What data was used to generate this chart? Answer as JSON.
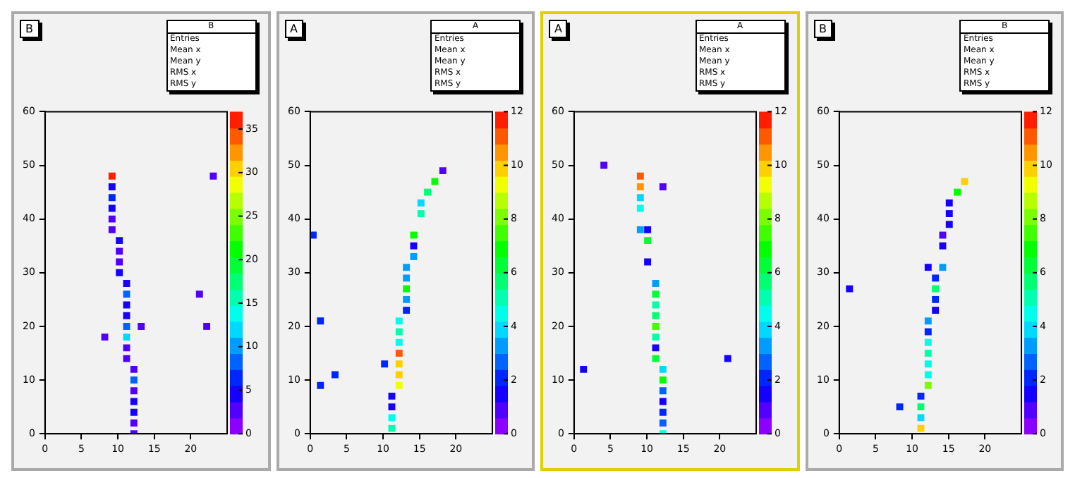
{
  "chart_data": [
    {
      "type": "scatter",
      "title": "B",
      "marker": "square",
      "xlim": [
        0,
        25
      ],
      "xticks": [
        0,
        5,
        10,
        15,
        20
      ],
      "ylim": [
        0,
        60
      ],
      "yticks": [
        0,
        10,
        20,
        30,
        40,
        50,
        60
      ],
      "clim": [
        0,
        37
      ],
      "cticks": [
        0,
        5,
        10,
        15,
        20,
        25,
        30,
        35
      ],
      "annotations": [
        "Entries",
        "Mean x",
        "Mean y",
        "RMS x",
        "RMS y"
      ],
      "x": [
        9.2,
        9.2,
        9.2,
        9.2,
        9.2,
        9.2,
        10.2,
        10.2,
        10.2,
        10.2,
        11.2,
        11.2,
        11.2,
        11.2,
        11.2,
        13.2,
        22.2,
        8.2,
        11.2,
        11.2,
        11.2,
        12.2,
        12.2,
        12.2,
        12.2,
        12.2,
        12.2,
        12.2,
        21.2,
        23.1
      ],
      "values": [
        48,
        46,
        44,
        42,
        40,
        38,
        36,
        34,
        32,
        30,
        28,
        26,
        24,
        22,
        20,
        20,
        20,
        18,
        18,
        16,
        14,
        12,
        10,
        8,
        6,
        4,
        2,
        0,
        26,
        48
      ],
      "cvalues": [
        36,
        5,
        6,
        5,
        2,
        2,
        4,
        2,
        2,
        4,
        5,
        9,
        4,
        4,
        9,
        2,
        2,
        2,
        12,
        3,
        3,
        2,
        8,
        2,
        5,
        5,
        2,
        2,
        2,
        3
      ]
    },
    {
      "type": "scatter",
      "title": "A",
      "marker": "square",
      "xlim": [
        0,
        25
      ],
      "xticks": [
        0,
        5,
        10,
        15,
        20
      ],
      "ylim": [
        0,
        60
      ],
      "yticks": [
        0,
        10,
        20,
        30,
        40,
        50,
        60
      ],
      "clim": [
        0,
        12
      ],
      "cticks": [
        0,
        2,
        4,
        6,
        8,
        10,
        12
      ],
      "annotations": [
        "Entries",
        "Mean x",
        "Mean y",
        "RMS x",
        "RMS y"
      ],
      "x": [
        18.2,
        17.1,
        16.1,
        15.2,
        15.2,
        14.2,
        14.2,
        14.2,
        13.2,
        13.2,
        13.2,
        13.2,
        13.2,
        12.2,
        12.2,
        12.2,
        12.2,
        12.2,
        12.2,
        12.2,
        11.2,
        11.2,
        11.2,
        11.2,
        10.2,
        0.4,
        1.4,
        3.4,
        1.4
      ],
      "values": [
        49,
        47,
        45,
        43,
        41,
        37,
        35,
        33,
        31,
        29,
        27,
        25,
        23,
        21,
        19,
        17,
        15,
        13,
        11,
        9,
        7,
        5,
        3,
        1,
        13,
        37,
        21,
        11,
        9
      ],
      "cvalues": [
        1,
        7,
        5.5,
        4,
        5,
        7,
        1.5,
        3,
        3.5,
        3,
        7,
        3,
        2,
        4.5,
        5,
        4.5,
        11,
        10,
        10,
        9,
        1.5,
        1.5,
        4.2,
        5,
        2,
        2,
        2,
        2,
        2
      ]
    },
    {
      "type": "scatter",
      "title": "A",
      "marker": "square",
      "xlim": [
        0,
        25
      ],
      "xticks": [
        0,
        5,
        10,
        15,
        20
      ],
      "ylim": [
        0,
        60
      ],
      "yticks": [
        0,
        10,
        20,
        30,
        40,
        50,
        60
      ],
      "clim": [
        0,
        12
      ],
      "cticks": [
        0,
        2,
        4,
        6,
        8,
        10,
        12
      ],
      "annotations": [
        "Entries",
        "Mean x",
        "Mean y",
        "RMS x",
        "RMS y"
      ],
      "x": [
        4.1,
        9.1,
        9.1,
        12.2,
        9.1,
        9.1,
        9.1,
        10.1,
        10.1,
        10.1,
        11.2,
        11.2,
        11.2,
        11.2,
        11.2,
        11.2,
        11.2,
        11.2,
        21.1,
        1.3,
        12.2,
        12.2,
        12.2,
        12.2,
        12.2,
        12.2,
        12.2
      ],
      "values": [
        50,
        48,
        46,
        46,
        44,
        42,
        38,
        38,
        36,
        32,
        28,
        26,
        24,
        22,
        20,
        18,
        16,
        14,
        14,
        12,
        12,
        10,
        8,
        6,
        4,
        2,
        0
      ],
      "cvalues": [
        1,
        11,
        10.5,
        1,
        4,
        4.5,
        3,
        1.5,
        6,
        1.5,
        3.5,
        6,
        5,
        5.5,
        7.5,
        5,
        1.5,
        6,
        1.5,
        1.5,
        4,
        7,
        2.5,
        1.5,
        2,
        2.5,
        4.5
      ]
    },
    {
      "type": "scatter",
      "title": "B",
      "marker": "square",
      "xlim": [
        0,
        25
      ],
      "xticks": [
        0,
        5,
        10,
        15,
        20
      ],
      "ylim": [
        0,
        60
      ],
      "yticks": [
        0,
        10,
        20,
        30,
        40,
        50,
        60
      ],
      "clim": [
        0,
        12
      ],
      "cticks": [
        0,
        2,
        4,
        6,
        8,
        10,
        12
      ],
      "annotations": [
        "Entries",
        "Mean x",
        "Mean y",
        "RMS x",
        "RMS y"
      ],
      "x": [
        17.2,
        16.2,
        15.1,
        15.1,
        15.1,
        14.2,
        14.2,
        12.2,
        14.2,
        13.2,
        13.2,
        13.2,
        13.2,
        12.2,
        12.2,
        12.2,
        12.2,
        12.2,
        12.2,
        12.2,
        11.2,
        11.2,
        8.3,
        11.2,
        1.4,
        11.2
      ],
      "values": [
        47,
        45,
        43,
        41,
        39,
        37,
        35,
        31,
        31,
        29,
        27,
        25,
        23,
        21,
        19,
        17,
        15,
        13,
        11,
        9,
        7,
        5,
        5,
        3,
        27,
        1
      ],
      "cvalues": [
        10,
        7,
        1.5,
        1.5,
        1.5,
        1,
        1.5,
        1.5,
        3,
        2,
        5.5,
        2,
        1.5,
        3,
        2,
        4.5,
        5,
        4.5,
        4.5,
        8,
        2,
        5.5,
        2,
        4,
        1.5,
        10
      ]
    }
  ]
}
